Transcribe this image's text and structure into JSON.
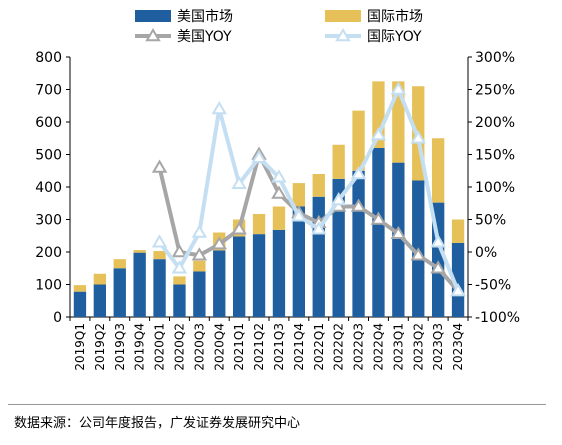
{
  "chart_data": {
    "type": "bar",
    "categories": [
      "2019Q1",
      "2019Q2",
      "2019Q3",
      "2019Q4",
      "2020Q1",
      "2020Q2",
      "2020Q3",
      "2020Q4",
      "2021Q1",
      "2021Q2",
      "2021Q3",
      "2021Q4",
      "2022Q1",
      "2022Q2",
      "2022Q3",
      "2022Q4",
      "2023Q1",
      "2023Q2",
      "2023Q3",
      "2023Q4"
    ],
    "stacked": true,
    "series": [
      {
        "name": "美国市场",
        "kind": "bar",
        "axis": "left",
        "color": "#1f5fa0",
        "values": [
          78,
          100,
          150,
          198,
          178,
          100,
          140,
          205,
          248,
          255,
          268,
          340,
          370,
          425,
          450,
          520,
          475,
          420,
          352,
          228
        ]
      },
      {
        "name": "国际市场",
        "kind": "bar",
        "axis": "left",
        "color": "#e6c15a",
        "values": [
          20,
          33,
          28,
          8,
          25,
          25,
          33,
          55,
          52,
          62,
          72,
          72,
          70,
          105,
          185,
          205,
          250,
          290,
          198,
          72
        ]
      },
      {
        "name": "美国YOY",
        "kind": "line",
        "axis": "right",
        "color": "#a6a6a6",
        "marker": "triangle",
        "values": [
          null,
          null,
          null,
          null,
          130,
          0,
          -5,
          12,
          35,
          150,
          90,
          60,
          45,
          70,
          70,
          50,
          28,
          -5,
          -25,
          -60
        ]
      },
      {
        "name": "国际YOY",
        "kind": "line",
        "axis": "right",
        "color": "#c5dff2",
        "marker": "triangle",
        "values": [
          null,
          null,
          null,
          null,
          15,
          -25,
          30,
          220,
          105,
          145,
          115,
          55,
          35,
          80,
          120,
          180,
          250,
          175,
          15,
          -60
        ]
      }
    ],
    "y_left": {
      "min": 0,
      "max": 800,
      "ticks": [
        0,
        100,
        200,
        300,
        400,
        500,
        600,
        700,
        800
      ]
    },
    "y_right": {
      "min": -100,
      "max": 300,
      "ticks": [
        "-100%",
        "-50%",
        "0%",
        "50%",
        "100%",
        "150%",
        "200%",
        "250%",
        "300%"
      ]
    },
    "legend_position": "top",
    "grid": false
  },
  "source": "数据来源：公司年度报告，广发证券发展研究中心"
}
